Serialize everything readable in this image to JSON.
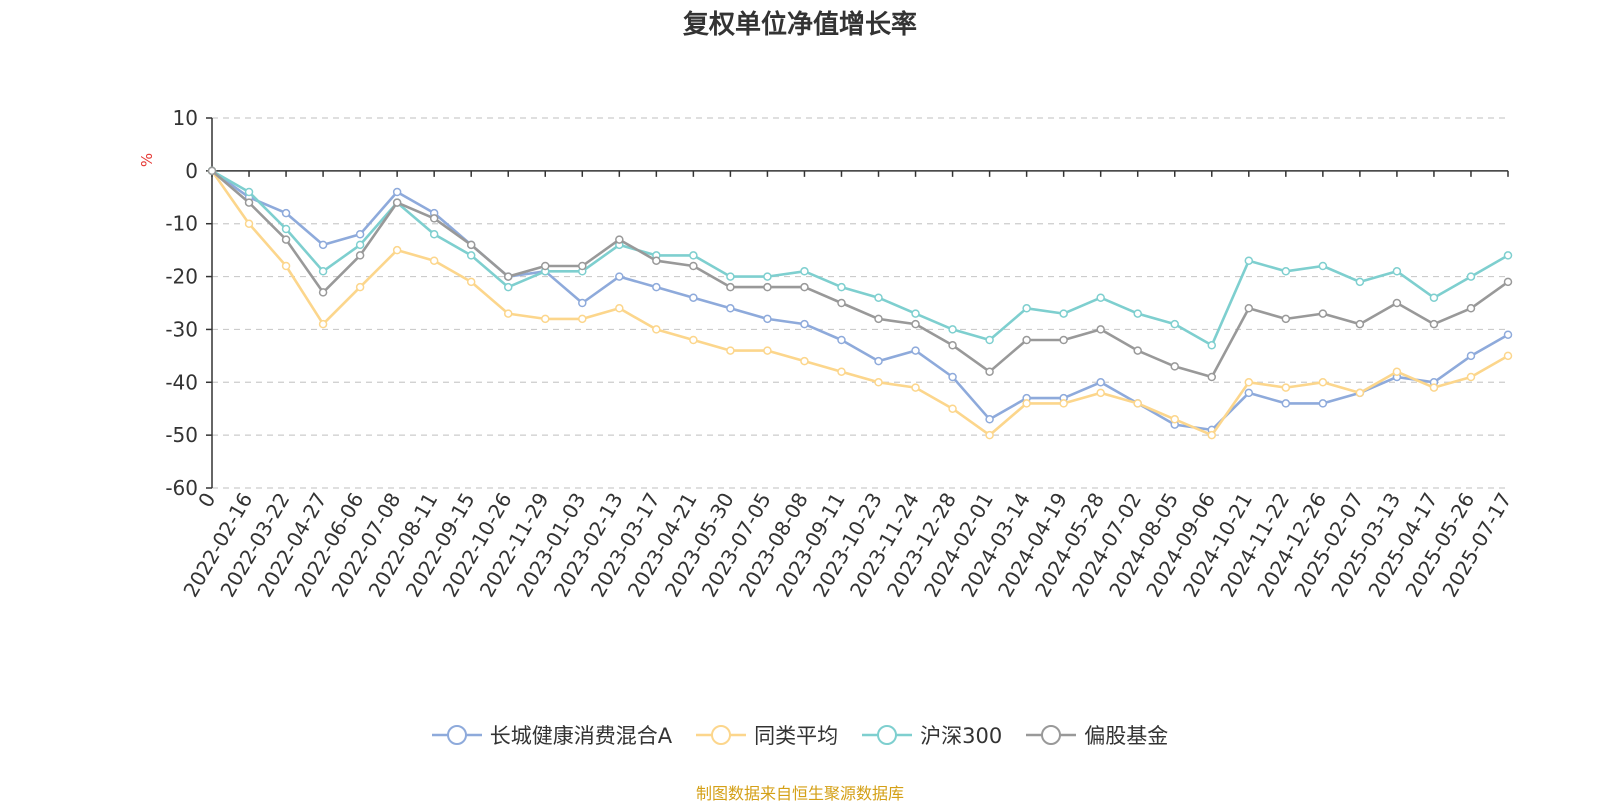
{
  "chart_data": {
    "type": "line",
    "title": "复权单位净值增长率",
    "ylabel": "%",
    "ylim": [
      -60,
      10
    ],
    "yticks": [
      10,
      0,
      -10,
      -20,
      -30,
      -40,
      -50,
      -60
    ],
    "grid": true,
    "legend_position": "bottom",
    "x_ticks": [
      "0",
      "2022-02-16",
      "2022-03-22",
      "2022-04-27",
      "2022-06-06",
      "2022-07-08",
      "2022-08-11",
      "2022-09-15",
      "2022-10-26",
      "2022-11-29",
      "2023-01-03",
      "2023-02-13",
      "2023-03-17",
      "2023-04-21",
      "2023-05-30",
      "2023-07-05",
      "2023-08-08",
      "2023-09-11",
      "2023-10-23",
      "2023-11-24",
      "2023-12-28",
      "2024-02-01",
      "2024-03-14",
      "2024-04-19",
      "2024-05-28",
      "2024-07-02",
      "2024-08-05",
      "2024-09-06",
      "2024-10-21",
      "2024-11-22",
      "2024-12-26",
      "2025-02-07",
      "2025-03-13",
      "2025-04-17",
      "2025-05-26",
      "2025-07-17"
    ],
    "x": [
      "0",
      "2022-02-16",
      "2022-03-22",
      "2022-04-27",
      "2022-06-06",
      "2022-07-08",
      "2022-08-11",
      "2022-09-15",
      "2022-10-26",
      "2022-11-29",
      "2023-01-03",
      "2023-02-13",
      "2023-03-17",
      "2023-04-21",
      "2023-05-30",
      "2023-07-05",
      "2023-08-08",
      "2023-09-11",
      "2023-10-23",
      "2023-11-24",
      "2023-12-28",
      "2024-02-01",
      "2024-03-14",
      "2024-04-19",
      "2024-05-28",
      "2024-07-02",
      "2024-08-05",
      "2024-09-06",
      "2024-10-21",
      "2024-11-22",
      "2024-12-26",
      "2025-02-07",
      "2025-03-13",
      "2025-04-17",
      "2025-05-26",
      "2025-07-17"
    ],
    "series": [
      {
        "name": "长城健康消费混合A",
        "color": "#8eaadb",
        "values": [
          0,
          -5,
          -8,
          -14,
          -12,
          -4,
          -8,
          -14,
          -20,
          -19,
          -25,
          -20,
          -22,
          -24,
          -26,
          -28,
          -29,
          -32,
          -36,
          -34,
          -39,
          -47,
          -43,
          -43,
          -40,
          -44,
          -48,
          -49,
          -42,
          -44,
          -44,
          -42,
          -39,
          -40,
          -35,
          -31
        ]
      },
      {
        "name": "同类平均",
        "color": "#fcd68c",
        "values": [
          0,
          -10,
          -18,
          -29,
          -22,
          -15,
          -17,
          -21,
          -27,
          -28,
          -28,
          -26,
          -30,
          -32,
          -34,
          -34,
          -36,
          -38,
          -40,
          -41,
          -45,
          -50,
          -44,
          -44,
          -42,
          -44,
          -47,
          -50,
          -40,
          -41,
          -40,
          -42,
          -38,
          -41,
          -39,
          -35
        ]
      },
      {
        "name": "沪深300",
        "color": "#7ecfcf",
        "values": [
          0,
          -4,
          -11,
          -19,
          -14,
          -6,
          -12,
          -16,
          -22,
          -19,
          -19,
          -14,
          -16,
          -16,
          -20,
          -20,
          -19,
          -22,
          -24,
          -27,
          -30,
          -32,
          -26,
          -27,
          -24,
          -27,
          -29,
          -33,
          -17,
          -19,
          -18,
          -21,
          -19,
          -24,
          -20,
          -16
        ]
      },
      {
        "name": "偏股基金",
        "color": "#999999",
        "values": [
          0,
          -6,
          -13,
          -23,
          -16,
          -6,
          -9,
          -14,
          -20,
          -18,
          -18,
          -13,
          -17,
          -18,
          -22,
          -22,
          -22,
          -25,
          -28,
          -29,
          -33,
          -38,
          -32,
          -32,
          -30,
          -34,
          -37,
          -39,
          -26,
          -28,
          -27,
          -29,
          -25,
          -29,
          -26,
          -21
        ]
      }
    ]
  },
  "legend": {
    "items": [
      {
        "label": "长城健康消费混合A",
        "color": "#8eaadb"
      },
      {
        "label": "同类平均",
        "color": "#fcd68c"
      },
      {
        "label": "沪深300",
        "color": "#7ecfcf"
      },
      {
        "label": "偏股基金",
        "color": "#999999"
      }
    ]
  },
  "source_note": "制图数据来自恒生聚源数据库"
}
